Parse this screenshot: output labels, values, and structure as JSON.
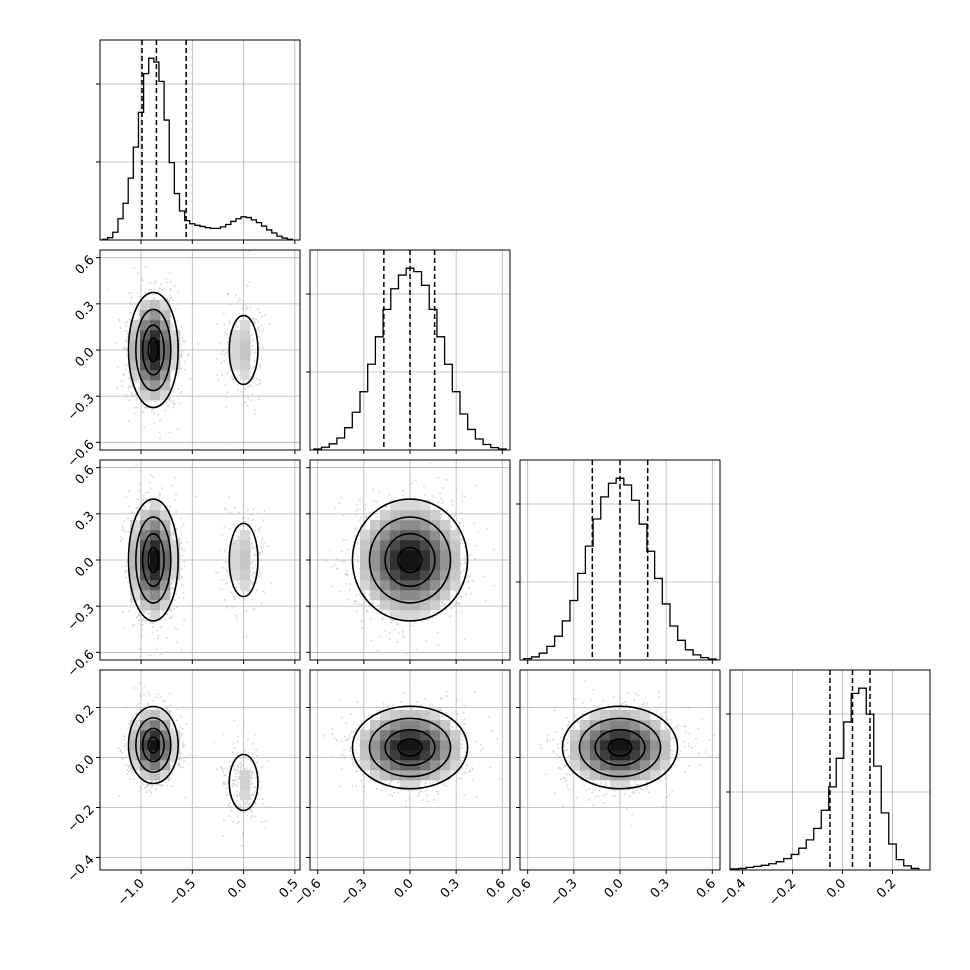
{
  "chart_data": {
    "type": "corner",
    "grid": true,
    "parameters": [
      {
        "range": [
          -1.4,
          0.55
        ],
        "ticks": [
          -1.0,
          -0.5,
          0.0,
          0.5
        ],
        "tick_labels": [
          "−1.0",
          "−0.5",
          "0.0",
          "0.5"
        ],
        "quantiles": [
          -0.99,
          -0.85,
          -0.56
        ],
        "hist": {
          "bins": [
            -1.35,
            -1.3,
            -1.25,
            -1.2,
            -1.15,
            -1.1,
            -1.05,
            -1.0,
            -0.95,
            -0.9,
            -0.85,
            -0.8,
            -0.75,
            -0.7,
            -0.65,
            -0.6,
            -0.55,
            -0.5,
            -0.45,
            -0.4,
            -0.35,
            -0.3,
            -0.25,
            -0.2,
            -0.15,
            -0.1,
            -0.05,
            0.0,
            0.05,
            0.1,
            0.15,
            0.2,
            0.25,
            0.3,
            0.35,
            0.4,
            0.45
          ],
          "counts": [
            2,
            6,
            20,
            55,
            95,
            160,
            240,
            330,
            430,
            470,
            460,
            410,
            310,
            200,
            120,
            75,
            50,
            42,
            38,
            35,
            32,
            30,
            30,
            34,
            40,
            48,
            55,
            60,
            58,
            52,
            45,
            36,
            26,
            18,
            10,
            5,
            2
          ]
        }
      },
      {
        "range": [
          -0.65,
          0.65
        ],
        "ticks": [
          -0.6,
          -0.3,
          0.0,
          0.3,
          0.6
        ],
        "tick_labels": [
          "−0.6",
          "−0.3",
          "0.0",
          "0.3",
          "0.6"
        ],
        "quantiles": [
          -0.17,
          0.0,
          0.16
        ],
        "hist": {
          "bins": [
            -0.6,
            -0.55,
            -0.5,
            -0.45,
            -0.4,
            -0.35,
            -0.3,
            -0.25,
            -0.2,
            -0.15,
            -0.1,
            -0.05,
            0.0,
            0.05,
            0.1,
            0.15,
            0.2,
            0.25,
            0.3,
            0.35,
            0.4,
            0.45,
            0.5,
            0.55,
            0.6
          ],
          "counts": [
            3,
            8,
            18,
            35,
            65,
            110,
            170,
            250,
            330,
            410,
            470,
            510,
            530,
            520,
            480,
            410,
            330,
            250,
            170,
            105,
            60,
            32,
            16,
            7,
            3
          ]
        }
      },
      {
        "range": [
          -0.65,
          0.65
        ],
        "ticks": [
          -0.6,
          -0.3,
          0.0,
          0.3,
          0.6
        ],
        "tick_labels": [
          "−0.6",
          "−0.3",
          "0.0",
          "0.3",
          "0.6"
        ],
        "quantiles": [
          -0.18,
          0.0,
          0.18
        ],
        "hist": {
          "bins": [
            -0.6,
            -0.55,
            -0.5,
            -0.45,
            -0.4,
            -0.35,
            -0.3,
            -0.25,
            -0.2,
            -0.15,
            -0.1,
            -0.05,
            0.0,
            0.05,
            0.1,
            0.15,
            0.2,
            0.25,
            0.3,
            0.35,
            0.4,
            0.45,
            0.5,
            0.55,
            0.6
          ],
          "counts": [
            4,
            9,
            20,
            40,
            70,
            115,
            175,
            255,
            335,
            415,
            480,
            520,
            535,
            515,
            470,
            400,
            320,
            240,
            165,
            100,
            58,
            30,
            15,
            7,
            3
          ]
        }
      },
      {
        "range": [
          -0.45,
          0.35
        ],
        "ticks": [
          -0.4,
          -0.2,
          0.0,
          0.2
        ],
        "tick_labels": [
          "−0.4",
          "−0.2",
          "0.0",
          "0.2"
        ],
        "quantiles": [
          -0.05,
          0.04,
          0.11
        ],
        "hist": {
          "bins": [
            -0.43,
            -0.4,
            -0.37,
            -0.34,
            -0.31,
            -0.28,
            -0.25,
            -0.22,
            -0.19,
            -0.16,
            -0.13,
            -0.1,
            -0.07,
            -0.04,
            -0.01,
            0.02,
            0.05,
            0.08,
            0.11,
            0.14,
            0.17,
            0.2,
            0.23,
            0.26,
            0.29
          ],
          "counts": [
            2,
            3,
            5,
            7,
            9,
            12,
            16,
            22,
            30,
            42,
            58,
            80,
            115,
            160,
            215,
            285,
            340,
            350,
            300,
            200,
            110,
            50,
            20,
            8,
            3
          ]
        }
      }
    ],
    "pairs": [
      {
        "row": 1,
        "col": 0,
        "modes": [
          {
            "x": -0.88,
            "y": 0.0,
            "sx": 0.11,
            "sy": 0.17,
            "w": 0.85
          },
          {
            "x": 0.0,
            "y": 0.0,
            "sx": 0.1,
            "sy": 0.16,
            "w": 0.15
          }
        ]
      },
      {
        "row": 2,
        "col": 0,
        "modes": [
          {
            "x": -0.88,
            "y": 0.0,
            "sx": 0.11,
            "sy": 0.18,
            "w": 0.85
          },
          {
            "x": 0.0,
            "y": 0.0,
            "sx": 0.1,
            "sy": 0.17,
            "w": 0.15
          }
        ]
      },
      {
        "row": 2,
        "col": 1,
        "modes": [
          {
            "x": 0.0,
            "y": 0.0,
            "sx": 0.17,
            "sy": 0.18,
            "w": 1.0
          }
        ]
      },
      {
        "row": 3,
        "col": 0,
        "modes": [
          {
            "x": -0.88,
            "y": 0.05,
            "sx": 0.11,
            "sy": 0.07,
            "w": 0.85
          },
          {
            "x": 0.0,
            "y": -0.1,
            "sx": 0.1,
            "sy": 0.08,
            "w": 0.15
          }
        ]
      },
      {
        "row": 3,
        "col": 1,
        "modes": [
          {
            "x": 0.0,
            "y": 0.04,
            "sx": 0.17,
            "sy": 0.075,
            "w": 1.0
          }
        ]
      },
      {
        "row": 3,
        "col": 2,
        "modes": [
          {
            "x": 0.0,
            "y": 0.04,
            "sx": 0.17,
            "sy": 0.075,
            "w": 1.0
          }
        ]
      }
    ]
  }
}
